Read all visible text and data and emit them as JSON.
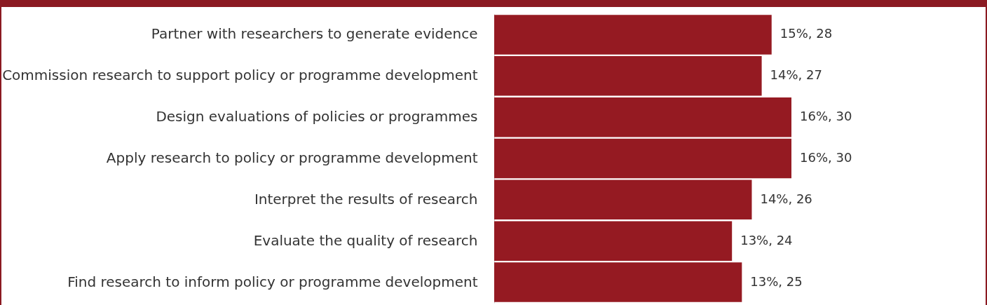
{
  "chart_data": {
    "type": "bar",
    "orientation": "horizontal",
    "categories": [
      "Partner with researchers to generate evidence",
      "Commission research to support policy or programme development",
      "Design evaluations of policies or programmes",
      "Apply research to policy or programme development",
      "Interpret the results of research",
      "Evaluate the quality of research",
      "Find research to inform policy or programme development"
    ],
    "values": [
      28,
      27,
      30,
      30,
      26,
      24,
      25
    ],
    "value_labels": [
      "15%, 28",
      "14%, 27",
      "16%, 30",
      "16%, 30",
      "14%, 26",
      "13%, 24",
      "13%, 25"
    ],
    "color": "#951a22"
  }
}
